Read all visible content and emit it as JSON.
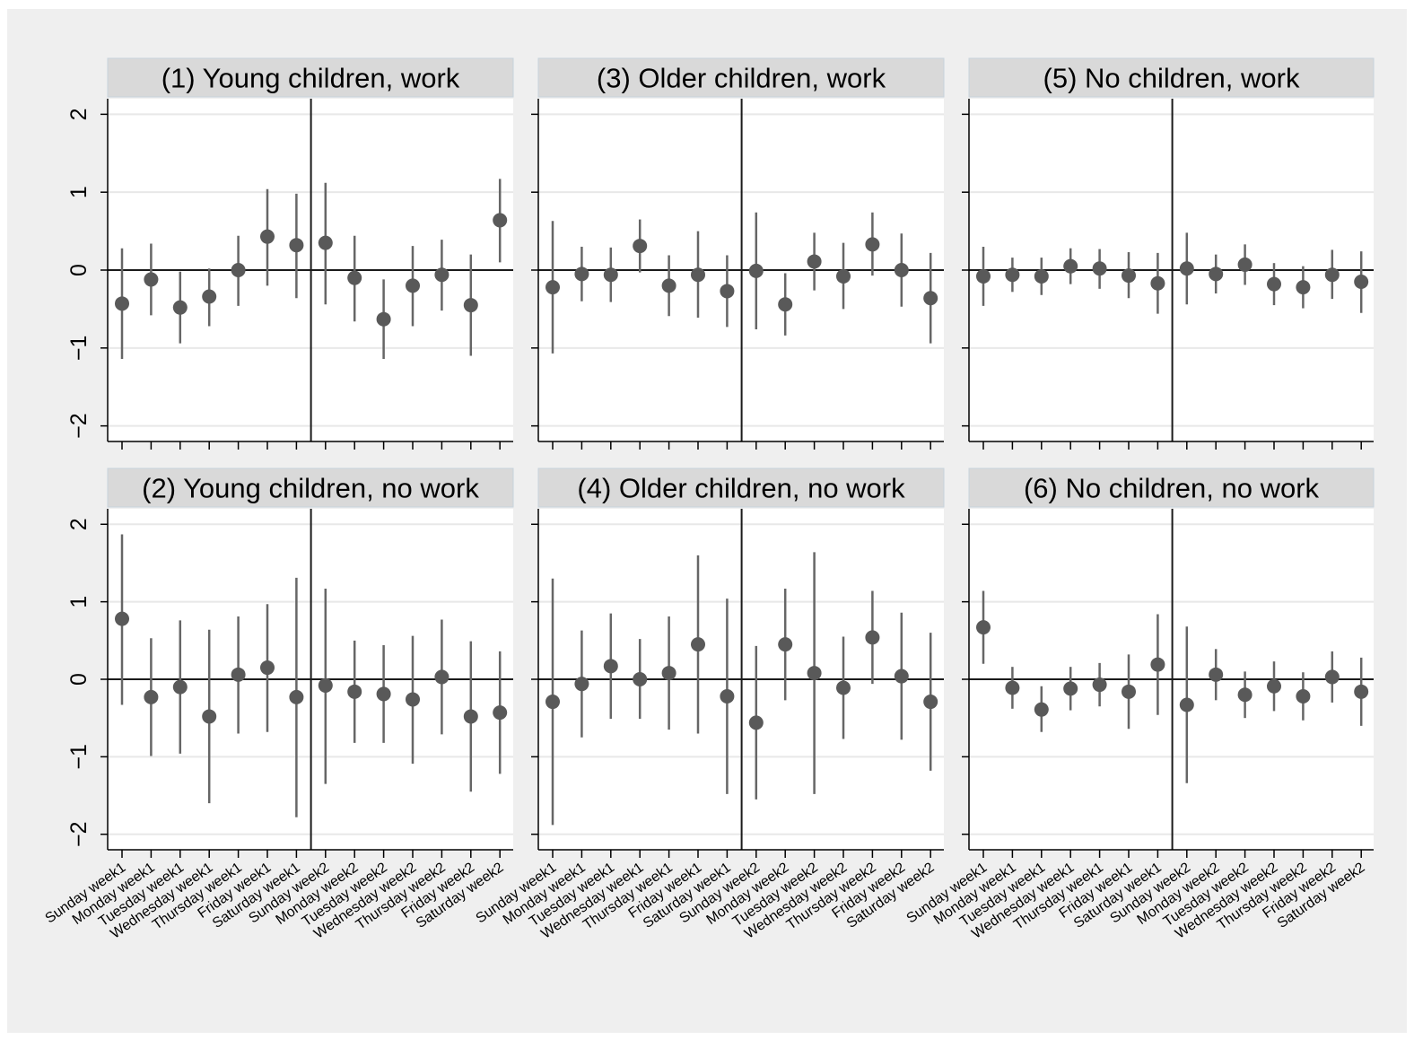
{
  "chart_data": {
    "type": "scatter",
    "style": {
      "figure_background": "#efefef",
      "panel_background": "#ffffff",
      "title_background": "#d9d9d9",
      "marker_color": "#595959",
      "ci_color": "#666666",
      "reference_line_color": "#1a1a1a",
      "grid_color": "#e8e8e8",
      "marker": "circle",
      "error_bars": true,
      "grid": true,
      "legend": "none"
    },
    "ylim": [
      -2.2,
      2.2
    ],
    "yticks": [
      -2,
      -1,
      0,
      1,
      2
    ],
    "ytick_labels": [
      "−2",
      "−1",
      "0",
      "1",
      "2"
    ],
    "horizontal_reference_y": 0,
    "vertical_reference_between": [
      "Saturday week1",
      "Sunday week2"
    ],
    "categories": [
      "Sunday week1",
      "Monday week1",
      "Tuesday week1",
      "Wednesday week1",
      "Thursday week1",
      "Friday week1",
      "Saturday week1",
      "Sunday week2",
      "Monday week2",
      "Tuesday week2",
      "Wednesday week2",
      "Thursday week2",
      "Friday week2",
      "Saturday week2"
    ],
    "panels": [
      {
        "title": "(1) Young children, work",
        "estimates": [
          -0.43,
          -0.12,
          -0.48,
          -0.34,
          0.0,
          0.43,
          0.32,
          0.35,
          -0.1,
          -0.63,
          -0.2,
          -0.06,
          -0.45,
          0.64
        ],
        "ci_low": [
          -1.14,
          -0.58,
          -0.94,
          -0.72,
          -0.46,
          -0.2,
          -0.36,
          -0.44,
          -0.66,
          -1.14,
          -0.72,
          -0.52,
          -1.1,
          0.1
        ],
        "ci_high": [
          0.28,
          0.34,
          -0.02,
          0.02,
          0.44,
          1.04,
          0.98,
          1.12,
          0.44,
          -0.12,
          0.31,
          0.39,
          0.2,
          1.17
        ]
      },
      {
        "title": "(2) Young children, no work",
        "estimates": [
          0.78,
          -0.23,
          -0.1,
          -0.48,
          0.06,
          0.15,
          -0.23,
          -0.08,
          -0.16,
          -0.19,
          -0.26,
          0.03,
          -0.48,
          -0.43
        ],
        "ci_low": [
          -0.33,
          -0.99,
          -0.96,
          -1.6,
          -0.7,
          -0.68,
          -1.78,
          -1.35,
          -0.82,
          -0.82,
          -1.09,
          -0.71,
          -1.45,
          -1.22
        ],
        "ci_high": [
          1.87,
          0.53,
          0.76,
          0.64,
          0.81,
          0.97,
          1.31,
          1.17,
          0.5,
          0.44,
          0.56,
          0.77,
          0.49,
          0.36
        ]
      },
      {
        "title": "(3) Older children, work",
        "estimates": [
          -0.22,
          -0.05,
          -0.06,
          0.31,
          -0.2,
          -0.06,
          -0.27,
          -0.01,
          -0.44,
          0.11,
          -0.08,
          0.33,
          0.0,
          -0.36
        ],
        "ci_low": [
          -1.07,
          -0.4,
          -0.41,
          -0.03,
          -0.59,
          -0.61,
          -0.73,
          -0.76,
          -0.84,
          -0.26,
          -0.5,
          -0.07,
          -0.47,
          -0.94
        ],
        "ci_high": [
          0.63,
          0.3,
          0.29,
          0.65,
          0.19,
          0.5,
          0.19,
          0.74,
          -0.04,
          0.48,
          0.35,
          0.74,
          0.47,
          0.22
        ]
      },
      {
        "title": "(4) Older children, no work",
        "estimates": [
          -0.29,
          -0.06,
          0.17,
          0.0,
          0.08,
          0.45,
          -0.22,
          -0.56,
          0.45,
          0.08,
          -0.11,
          0.54,
          0.04,
          -0.29
        ],
        "ci_low": [
          -1.88,
          -0.75,
          -0.51,
          -0.51,
          -0.65,
          -0.7,
          -1.48,
          -1.55,
          -0.27,
          -1.48,
          -0.77,
          -0.06,
          -0.78,
          -1.18
        ],
        "ci_high": [
          1.3,
          0.63,
          0.85,
          0.52,
          0.81,
          1.6,
          1.04,
          0.43,
          1.17,
          1.64,
          0.55,
          1.14,
          0.86,
          0.6
        ]
      },
      {
        "title": "(5) No children, work",
        "estimates": [
          -0.08,
          -0.06,
          -0.08,
          0.05,
          0.02,
          -0.07,
          -0.17,
          0.02,
          -0.05,
          0.07,
          -0.18,
          -0.22,
          -0.06,
          -0.15
        ],
        "ci_low": [
          -0.46,
          -0.28,
          -0.32,
          -0.18,
          -0.24,
          -0.36,
          -0.56,
          -0.44,
          -0.3,
          -0.19,
          -0.45,
          -0.49,
          -0.37,
          -0.55
        ],
        "ci_high": [
          0.3,
          0.16,
          0.16,
          0.28,
          0.27,
          0.23,
          0.22,
          0.48,
          0.2,
          0.33,
          0.09,
          0.05,
          0.26,
          0.24
        ]
      },
      {
        "title": "(6) No children, no work",
        "estimates": [
          0.67,
          -0.11,
          -0.39,
          -0.12,
          -0.07,
          -0.16,
          0.19,
          -0.33,
          0.06,
          -0.2,
          -0.09,
          -0.22,
          0.03,
          -0.16
        ],
        "ci_low": [
          0.2,
          -0.38,
          -0.68,
          -0.4,
          -0.35,
          -0.64,
          -0.46,
          -1.34,
          -0.27,
          -0.5,
          -0.41,
          -0.53,
          -0.3,
          -0.6
        ],
        "ci_high": [
          1.14,
          0.16,
          -0.09,
          0.16,
          0.21,
          0.32,
          0.84,
          0.68,
          0.39,
          0.1,
          0.23,
          0.09,
          0.36,
          0.28
        ]
      }
    ]
  }
}
